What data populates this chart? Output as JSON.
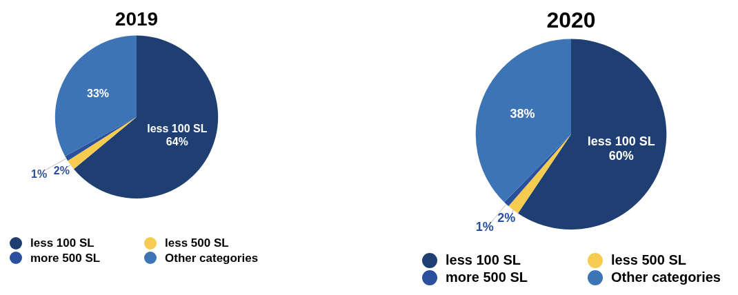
{
  "chart_data": [
    {
      "type": "pie",
      "title": "2019",
      "categories": [
        "less 100 SL",
        "less 500 SL",
        "more 500 SL",
        "Other categories"
      ],
      "values": [
        64,
        2,
        1,
        33
      ],
      "colors": [
        "#1f3f73",
        "#f5cc50",
        "#2a4f9c",
        "#3d74b6"
      ],
      "value_labels": [
        "less 100 SL\n64%",
        "2%",
        "1%",
        "33%"
      ],
      "legend": "bottom"
    },
    {
      "type": "pie",
      "title": "2020",
      "categories": [
        "less 100 SL",
        "less 500 SL",
        "more 500 SL",
        "Other categories"
      ],
      "values": [
        60,
        2,
        1,
        38
      ],
      "colors": [
        "#1f3f73",
        "#f5cc50",
        "#2a4f9c",
        "#3d74b6"
      ],
      "value_labels": [
        "less 100 SL\n60%",
        "2%",
        "1%",
        "38%"
      ],
      "legend": "bottom"
    }
  ]
}
